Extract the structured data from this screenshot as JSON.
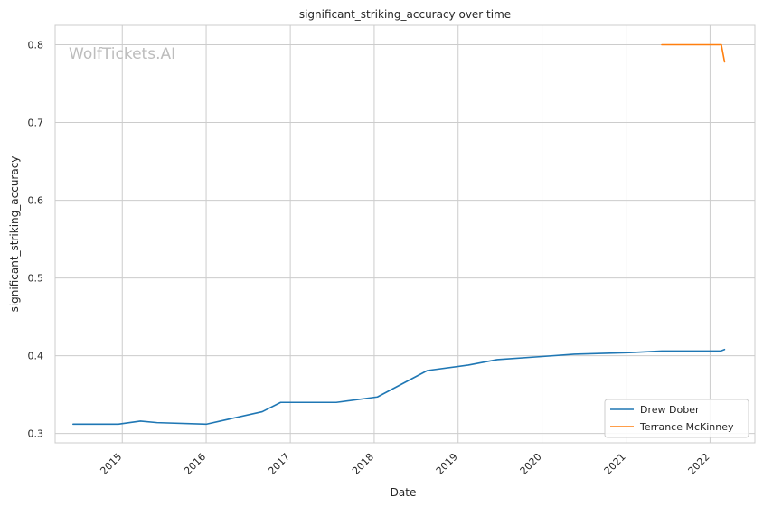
{
  "chart_data": {
    "type": "line",
    "title": "significant_striking_accuracy over time",
    "xlabel": "Date",
    "ylabel": "significant_striking_accuracy",
    "watermark": "WolfTickets.AI",
    "x_ticks": [
      "2015",
      "2016",
      "2017",
      "2018",
      "2019",
      "2020",
      "2021",
      "2022"
    ],
    "y_ticks": [
      "0.3",
      "0.4",
      "0.5",
      "0.6",
      "0.7",
      "0.8"
    ],
    "xlim": [
      "2014-03-15",
      "2022-07-15"
    ],
    "ylim": [
      0.288,
      0.825
    ],
    "grid": true,
    "legend_position": "lower-right",
    "series": [
      {
        "name": "Drew Dober",
        "color": "#1f77b4",
        "points": [
          [
            "2014-06-01",
            0.312
          ],
          [
            "2014-12-15",
            0.312
          ],
          [
            "2015-03-21",
            0.316
          ],
          [
            "2015-06-01",
            0.314
          ],
          [
            "2016-01-01",
            0.312
          ],
          [
            "2016-09-01",
            0.328
          ],
          [
            "2016-11-20",
            0.34
          ],
          [
            "2017-07-20",
            0.34
          ],
          [
            "2018-01-15",
            0.347
          ],
          [
            "2018-08-20",
            0.381
          ],
          [
            "2019-02-15",
            0.388
          ],
          [
            "2019-06-20",
            0.395
          ],
          [
            "2020-01-01",
            0.399
          ],
          [
            "2020-05-20",
            0.402
          ],
          [
            "2021-01-15",
            0.404
          ],
          [
            "2021-06-05",
            0.406
          ],
          [
            "2022-02-15",
            0.406
          ],
          [
            "2022-03-05",
            0.408
          ]
        ]
      },
      {
        "name": "Terrance McKinney",
        "color": "#ff7f0e",
        "points": [
          [
            "2021-06-05",
            0.8
          ],
          [
            "2022-02-19",
            0.8
          ],
          [
            "2022-03-05",
            0.778
          ]
        ]
      }
    ]
  }
}
